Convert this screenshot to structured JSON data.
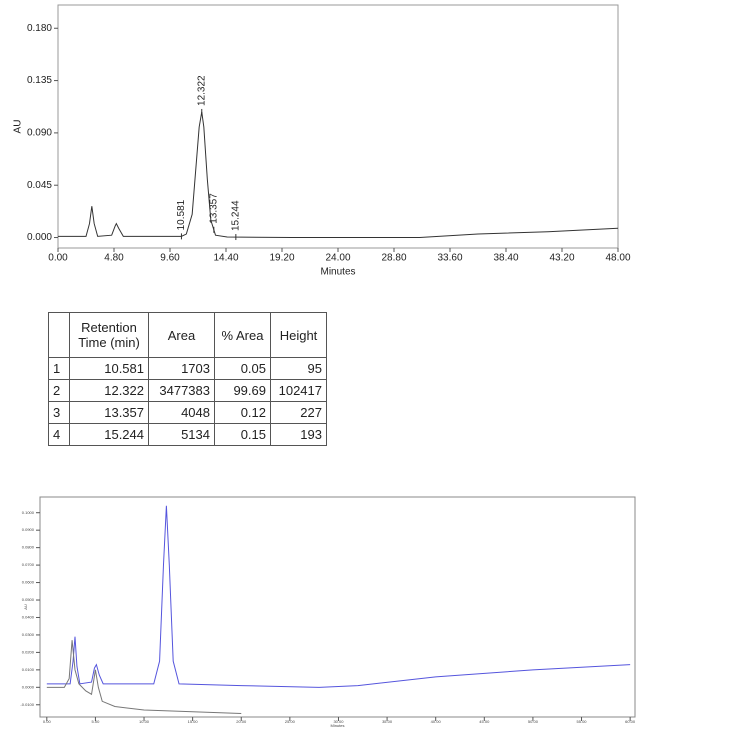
{
  "chart_data": [
    {
      "type": "line",
      "ylabel": "AU",
      "xlabel": "Minutes",
      "xlim": [
        0,
        48
      ],
      "ylim": [
        -0.009,
        0.2
      ],
      "xticks": [
        {
          "value": 0,
          "label": "0.00"
        },
        {
          "value": 4.8,
          "label": "4.80"
        },
        {
          "value": 9.6,
          "label": "9.60"
        },
        {
          "value": 14.4,
          "label": "14.40"
        },
        {
          "value": 19.2,
          "label": "19.20"
        },
        {
          "value": 24,
          "label": "24.00"
        },
        {
          "value": 28.8,
          "label": "28.80"
        },
        {
          "value": 33.6,
          "label": "33.60"
        },
        {
          "value": 38.4,
          "label": "38.40"
        },
        {
          "value": 43.2,
          "label": "43.20"
        },
        {
          "value": 48,
          "label": "48.00"
        }
      ],
      "yticks": [
        {
          "value": 0,
          "label": "0.000"
        },
        {
          "value": 0.045,
          "label": "0.045"
        },
        {
          "value": 0.09,
          "label": "0.090"
        },
        {
          "value": 0.135,
          "label": "0.135"
        },
        {
          "value": 0.18,
          "label": "0.180"
        }
      ],
      "peak_labels": [
        10.581,
        12.322,
        13.357,
        15.244
      ],
      "series": [
        {
          "color": "#333333",
          "x": [
            0,
            2.4,
            2.7,
            2.9,
            3.1,
            3.4,
            4.6,
            4.9,
            5.0,
            5.2,
            5.6,
            10.0,
            10.581,
            11.0,
            11.5,
            11.9,
            12.1,
            12.322,
            12.5,
            12.8,
            13.1,
            13.5,
            14.5,
            20,
            28,
            31,
            36,
            42,
            48
          ],
          "values": [
            0.001,
            0.001,
            0.012,
            0.027,
            0.012,
            0.001,
            0.002,
            0.01,
            0.012,
            0.008,
            0.001,
            0.001,
            0.001,
            0.003,
            0.02,
            0.07,
            0.095,
            0.108,
            0.095,
            0.05,
            0.015,
            0.002,
            0.0005,
            0.0,
            0.0,
            0.0,
            0.003,
            0.005,
            0.008
          ]
        }
      ]
    },
    {
      "type": "line",
      "ylabel": "AU",
      "xlabel": "Minutes",
      "xlim": [
        -0.7,
        60.5
      ],
      "ylim": [
        -0.017,
        0.109
      ],
      "xticks": [
        {
          "value": 0,
          "label": "0.00"
        },
        {
          "value": 5,
          "label": "5.00"
        },
        {
          "value": 10,
          "label": "10.00"
        },
        {
          "value": 15,
          "label": "15.00"
        },
        {
          "value": 20,
          "label": "20.00"
        },
        {
          "value": 25,
          "label": "25.00"
        },
        {
          "value": 30,
          "label": "30.00"
        },
        {
          "value": 35,
          "label": "35.00"
        },
        {
          "value": 40,
          "label": "40.00"
        },
        {
          "value": 45,
          "label": "45.00"
        },
        {
          "value": 50,
          "label": "50.00"
        },
        {
          "value": 55,
          "label": "55.00"
        },
        {
          "value": 60,
          "label": "60.00"
        }
      ],
      "yticks": [
        {
          "value": -0.01,
          "label": "-0.0100"
        },
        {
          "value": 0,
          "label": "0.0000"
        },
        {
          "value": 0.01,
          "label": "0.0100"
        },
        {
          "value": 0.02,
          "label": "0.0200"
        },
        {
          "value": 0.03,
          "label": "0.0300"
        },
        {
          "value": 0.04,
          "label": "0.0400"
        },
        {
          "value": 0.05,
          "label": "0.0500"
        },
        {
          "value": 0.06,
          "label": "0.0600"
        },
        {
          "value": 0.07,
          "label": "0.0700"
        },
        {
          "value": 0.08,
          "label": "0.0800"
        },
        {
          "value": 0.09,
          "label": "0.0900"
        },
        {
          "value": 0.1,
          "label": "0.1000"
        }
      ],
      "series": [
        {
          "color": "#5555dd",
          "x": [
            0,
            2.4,
            2.7,
            2.9,
            3.1,
            3.4,
            4.6,
            4.9,
            5.1,
            5.4,
            5.8,
            11,
            11.6,
            12.0,
            12.3,
            12.6,
            13.0,
            13.6,
            20,
            28,
            32,
            40,
            50,
            60
          ],
          "values": [
            0.002,
            0.002,
            0.015,
            0.029,
            0.012,
            0.002,
            0.003,
            0.011,
            0.013,
            0.007,
            0.002,
            0.002,
            0.015,
            0.07,
            0.104,
            0.07,
            0.015,
            0.002,
            0.001,
            0.0,
            0.001,
            0.006,
            0.01,
            0.013
          ]
        },
        {
          "color": "#777777",
          "x": [
            0,
            1.8,
            2.3,
            2.6,
            2.9,
            3.3,
            4.0,
            4.6,
            5.0,
            5.3,
            5.7,
            7,
            10,
            15,
            20
          ],
          "values": [
            0.0,
            0.0,
            0.005,
            0.027,
            0.01,
            0.002,
            -0.002,
            -0.004,
            0.01,
            0.0,
            -0.008,
            -0.011,
            -0.013,
            -0.014,
            -0.015
          ]
        }
      ]
    }
  ],
  "table": {
    "header": [
      "Retention Time (min)",
      "Area",
      "% Area",
      "Height"
    ],
    "rows": [
      [
        1,
        10.581,
        1703,
        0.05,
        95
      ],
      [
        2,
        12.322,
        3477383,
        99.69,
        102417
      ],
      [
        3,
        13.357,
        4048,
        0.12,
        227
      ],
      [
        4,
        15.244,
        5134,
        0.15,
        193
      ]
    ]
  }
}
